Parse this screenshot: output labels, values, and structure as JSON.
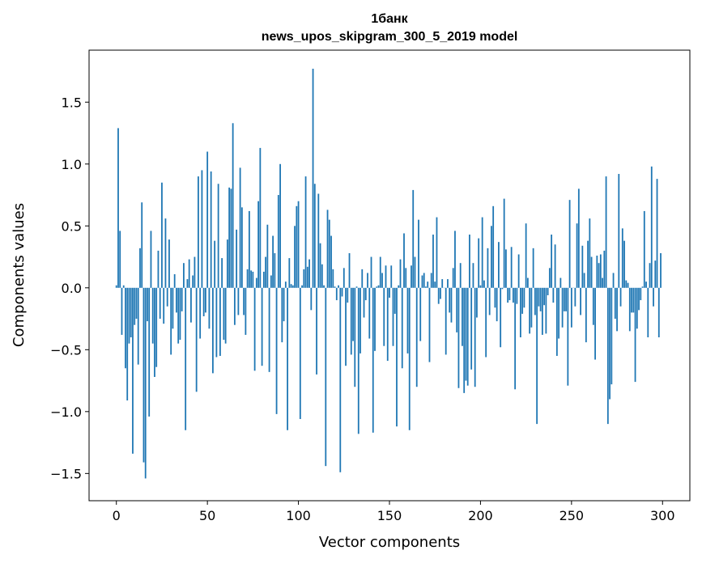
{
  "chart_data": {
    "type": "bar",
    "title": "1банк",
    "subtitle": "news_upos_skipgram_300_5_2019 model",
    "xlabel": "Vector components",
    "ylabel": "Components values",
    "xlim": [
      -15,
      315
    ],
    "ylim": [
      -1.72,
      1.92
    ],
    "xticks": [
      0,
      50,
      100,
      150,
      200,
      250,
      300
    ],
    "xtick_labels": [
      "0",
      "50",
      "100",
      "150",
      "200",
      "250",
      "300"
    ],
    "yticks": [
      -1.5,
      -1.0,
      -0.5,
      0.0,
      0.5,
      1.0,
      1.5
    ],
    "ytick_labels": [
      "−1.5",
      "−1.0",
      "−0.5",
      "0.0",
      "0.5",
      "1.0",
      "1.5"
    ],
    "grid": false,
    "bar_color": "#1f77b4",
    "values": [
      0.02,
      1.29,
      0.46,
      -0.38,
      0.02,
      -0.65,
      -0.91,
      -0.45,
      -0.4,
      -1.34,
      -0.3,
      -0.25,
      -0.62,
      0.32,
      0.69,
      -1.41,
      -1.54,
      -0.27,
      -1.04,
      0.46,
      -0.45,
      -0.72,
      -0.64,
      0.3,
      -0.25,
      0.85,
      -0.29,
      0.56,
      -0.15,
      0.39,
      -0.54,
      -0.33,
      0.11,
      -0.2,
      -0.45,
      -0.42,
      -0.19,
      0.2,
      -1.15,
      0.07,
      0.23,
      -0.28,
      0.1,
      0.25,
      -0.84,
      0.9,
      -0.41,
      0.95,
      -0.23,
      -0.2,
      1.1,
      -0.33,
      0.94,
      -0.69,
      0.38,
      -0.56,
      0.84,
      -0.55,
      0.24,
      -0.42,
      -0.45,
      0.39,
      0.81,
      0.8,
      1.33,
      -0.3,
      0.47,
      -0.22,
      0.97,
      0.65,
      -0.22,
      -0.38,
      0.15,
      0.62,
      0.14,
      0.13,
      -0.67,
      0.08,
      0.7,
      1.13,
      -0.63,
      0.13,
      0.25,
      0.51,
      -0.68,
      0.1,
      0.42,
      0.28,
      -1.02,
      0.75,
      1.0,
      -0.44,
      -0.27,
      0.05,
      -1.15,
      0.24,
      0.03,
      0.02,
      0.5,
      0.66,
      0.7,
      -1.06,
      0.02,
      0.15,
      0.9,
      0.17,
      0.23,
      -0.18,
      1.77,
      0.84,
      -0.7,
      0.76,
      0.36,
      0.19,
      0.02,
      -1.44,
      0.63,
      0.55,
      0.42,
      0.15,
      0.01,
      -0.1,
      0.02,
      -1.49,
      -0.07,
      0.16,
      -0.63,
      -0.12,
      0.28,
      -0.54,
      -0.43,
      -0.8,
      0.01,
      -1.18,
      -0.53,
      0.15,
      -0.24,
      -0.1,
      0.12,
      -0.41,
      0.25,
      -1.17,
      -0.51,
      0.01,
      0.02,
      0.25,
      0.12,
      -0.47,
      0.18,
      -0.59,
      -0.08,
      0.18,
      -0.47,
      -0.21,
      -1.12,
      0.02,
      0.23,
      -0.65,
      0.44,
      0.16,
      -0.53,
      -1.15,
      0.18,
      0.79,
      0.25,
      -0.8,
      0.55,
      -0.43,
      0.1,
      0.12,
      0.01,
      0.05,
      -0.6,
      0.12,
      0.43,
      0.05,
      0.57,
      -0.13,
      -0.09,
      0.07,
      0.0,
      -0.54,
      0.07,
      -0.2,
      -0.28,
      0.16,
      0.46,
      -0.36,
      -0.81,
      0.2,
      -0.47,
      -0.85,
      -0.75,
      -0.79,
      0.43,
      -0.66,
      0.2,
      -0.8,
      -0.24,
      0.4,
      0.02,
      0.57,
      0.06,
      -0.56,
      0.32,
      -0.22,
      0.5,
      0.66,
      -0.16,
      -0.27,
      0.37,
      -0.48,
      -0.01,
      0.72,
      0.31,
      -0.12,
      -0.1,
      0.33,
      -0.12,
      -0.82,
      -0.13,
      0.27,
      -0.4,
      -0.21,
      -0.16,
      0.52,
      0.08,
      -0.37,
      -0.32,
      0.32,
      -0.22,
      -1.1,
      -0.15,
      -0.19,
      -0.38,
      -0.14,
      -0.37,
      -0.06,
      0.16,
      0.43,
      -0.12,
      0.35,
      -0.55,
      -0.41,
      0.08,
      -0.32,
      -0.19,
      -0.19,
      -0.79,
      0.71,
      -0.32,
      0.0,
      -0.15,
      0.52,
      0.8,
      -0.22,
      0.34,
      0.12,
      -0.44,
      0.38,
      0.56,
      0.25,
      -0.3,
      -0.58,
      0.26,
      0.2,
      0.27,
      0.08,
      0.3,
      0.9,
      -1.1,
      -0.9,
      -0.78,
      0.12,
      -0.25,
      -0.35,
      0.92,
      -0.15,
      0.48,
      0.38,
      0.06,
      0.04,
      -0.35,
      -0.2,
      -0.2,
      -0.76,
      -0.33,
      -0.18,
      -0.1,
      0.01,
      0.62,
      0.05,
      -0.4,
      0.2,
      0.98,
      -0.15,
      0.22,
      0.88,
      -0.4,
      0.28
    ]
  }
}
